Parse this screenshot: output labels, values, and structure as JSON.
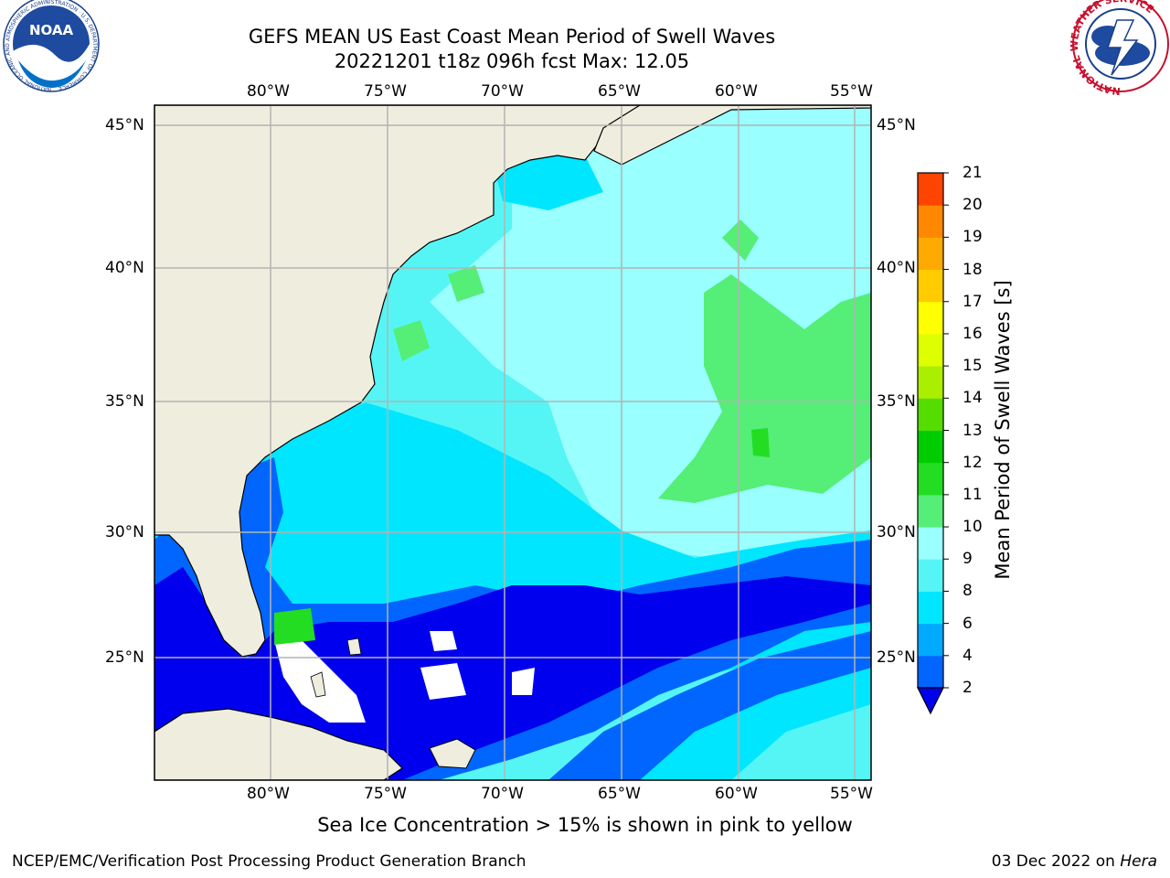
{
  "header": {
    "title_line1": "GEFS MEAN US East Coast Mean Period of Swell Waves",
    "title_line2": "20221201 t18z 096h fcst   Max: 12.05"
  },
  "map": {
    "lon_ticks": [
      "80°W",
      "75°W",
      "70°W",
      "65°W",
      "60°W",
      "55°W"
    ],
    "lat_ticks": [
      "45°N",
      "40°N",
      "35°N",
      "30°N",
      "25°N"
    ],
    "lon_range": [
      -85,
      -54
    ],
    "lat_range": [
      20.5,
      45.8
    ],
    "colors": {
      "land": "#efedde",
      "coast": "#000000",
      "grid": "#b4b4b4"
    }
  },
  "colorbar": {
    "title": "Mean Period of Swell Waves [s]",
    "levels": [
      "2",
      "4",
      "6",
      "8",
      "9",
      "10",
      "11",
      "12",
      "13",
      "14",
      "15",
      "16",
      "17",
      "18",
      "19",
      "20",
      "21"
    ],
    "colors": [
      "#0066ff",
      "#00aaff",
      "#00e6ff",
      "#55f5f5",
      "#99ffff",
      "#55ee77",
      "#22dd22",
      "#00cc00",
      "#55dd00",
      "#aaee00",
      "#ddff00",
      "#ffff00",
      "#ffcc00",
      "#ffaa00",
      "#ff8800",
      "#ff4400",
      "#ff0000"
    ],
    "under_color": "#0000ee"
  },
  "logos": {
    "noaa_text": "NOAA",
    "noaa_ring": "NATIONAL OCEANIC AND ATMOSPHERIC ADMINISTRATION · U.S. DEPARTMENT OF COMMERCE",
    "nws_ring": "NATIONAL WEATHER SERVICE"
  },
  "footer": {
    "note": "Sea Ice Concentration > 15% is shown in pink to yellow",
    "left": "NCEP/EMC/Verification Post Processing Product Generation Branch",
    "right_date": "03 Dec 2022 on",
    "right_host": "Hera"
  }
}
